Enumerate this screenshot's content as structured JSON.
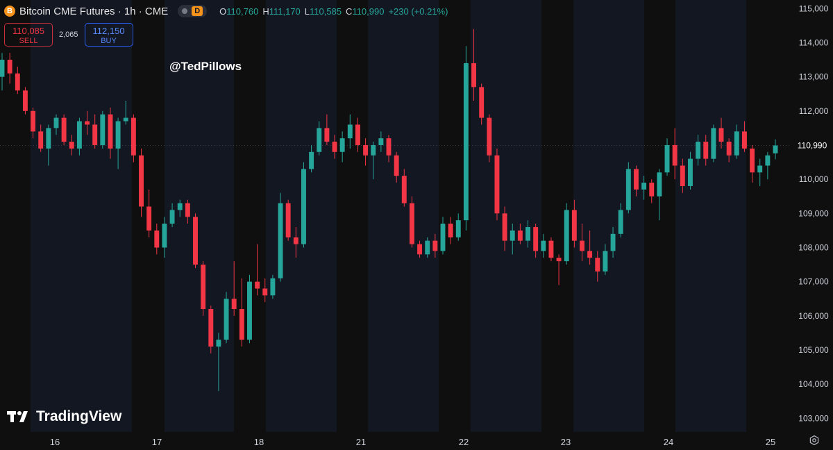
{
  "header": {
    "coin_glyph": "B",
    "title": "Bitcoin CME Futures · 1h · CME",
    "toggle_letter": "D",
    "ohlc": {
      "o_key": "O",
      "o_val": "110,760",
      "h_key": "H",
      "h_val": "111,170",
      "l_key": "L",
      "l_val": "110,585",
      "c_key": "C",
      "c_val": "110,990",
      "change": "+230 (+0.21%)"
    }
  },
  "trade": {
    "sell_price": "110,085",
    "sell_label": "SELL",
    "spread": "2,065",
    "buy_price": "112,150",
    "buy_label": "BUY"
  },
  "watermark": "@TedPillows",
  "brand": "TradingView",
  "colors": {
    "up": "#26a69a",
    "down": "#f23645",
    "background": "#0f0f0f",
    "session_band": "#131722"
  },
  "chart_data": {
    "type": "candlestick",
    "ylim": [
      102600,
      115250
    ],
    "y_ticks": [
      "103,000",
      "104,000",
      "105,000",
      "106,000",
      "107,000",
      "108,000",
      "109,000",
      "110,000",
      "111,000",
      "112,000",
      "113,000",
      "114,000",
      "115,000"
    ],
    "y_tick_values": [
      103000,
      104000,
      105000,
      106000,
      107000,
      108000,
      109000,
      110000,
      111000,
      112000,
      113000,
      114000,
      115000
    ],
    "x_ticks": [
      "16",
      "17",
      "18",
      "21",
      "22",
      "23",
      "24",
      "25"
    ],
    "last_price_label": "110,990",
    "last_price": 110990,
    "candles": [
      [
        113000,
        113700,
        112600,
        113500
      ],
      [
        113500,
        113700,
        112800,
        113100
      ],
      [
        113100,
        113300,
        112500,
        112600
      ],
      [
        112600,
        112700,
        111900,
        112000
      ],
      [
        112000,
        112100,
        111200,
        111400
      ],
      [
        111400,
        111600,
        110800,
        110900
      ],
      [
        110900,
        111600,
        110400,
        111500
      ],
      [
        111500,
        111900,
        111300,
        111800
      ],
      [
        111800,
        111900,
        111000,
        111100
      ],
      [
        111100,
        111300,
        110700,
        110900
      ],
      [
        110900,
        111800,
        110700,
        111700
      ],
      [
        111700,
        112000,
        111300,
        111600
      ],
      [
        111600,
        111900,
        110900,
        111000
      ],
      [
        111000,
        112000,
        110900,
        111900
      ],
      [
        111900,
        112100,
        110600,
        110900
      ],
      [
        110900,
        111800,
        110300,
        111700
      ],
      [
        111700,
        112300,
        111600,
        111800
      ],
      [
        111800,
        111900,
        110500,
        110700
      ],
      [
        110700,
        110900,
        108900,
        109200
      ],
      [
        109200,
        109700,
        108300,
        108500
      ],
      [
        108500,
        108700,
        107800,
        108000
      ],
      [
        108000,
        108900,
        107700,
        108700
      ],
      [
        108700,
        109300,
        108600,
        109100
      ],
      [
        109100,
        109400,
        108900,
        109300
      ],
      [
        109300,
        109400,
        108700,
        108900
      ],
      [
        108900,
        109000,
        107400,
        107500
      ],
      [
        107500,
        107600,
        106000,
        106200
      ],
      [
        106200,
        106300,
        104900,
        105100
      ],
      [
        105100,
        105500,
        103800,
        105300
      ],
      [
        105300,
        106700,
        105200,
        106500
      ],
      [
        106500,
        107600,
        106000,
        106200
      ],
      [
        106200,
        107100,
        105100,
        105300
      ],
      [
        105300,
        107200,
        105200,
        107000
      ],
      [
        107000,
        108100,
        106600,
        106800
      ],
      [
        106800,
        107100,
        106400,
        106600
      ],
      [
        106600,
        107200,
        106500,
        107100
      ],
      [
        107100,
        109600,
        107000,
        109300
      ],
      [
        109300,
        109400,
        108200,
        108300
      ],
      [
        108300,
        108600,
        107700,
        108100
      ],
      [
        108100,
        110500,
        108000,
        110300
      ],
      [
        110300,
        111000,
        110200,
        110800
      ],
      [
        110800,
        111700,
        110700,
        111500
      ],
      [
        111500,
        111900,
        111000,
        111100
      ],
      [
        111100,
        111300,
        110600,
        110800
      ],
      [
        110800,
        111400,
        110500,
        111200
      ],
      [
        111200,
        111900,
        110900,
        111600
      ],
      [
        111600,
        111800,
        110800,
        111000
      ],
      [
        111000,
        111200,
        110400,
        110700
      ],
      [
        110700,
        111100,
        110000,
        111000
      ],
      [
        111000,
        111400,
        110800,
        111200
      ],
      [
        111200,
        111300,
        110500,
        110700
      ],
      [
        110700,
        110800,
        109900,
        110100
      ],
      [
        110100,
        110300,
        109200,
        109300
      ],
      [
        109300,
        109500,
        108000,
        108100
      ],
      [
        108100,
        108200,
        107700,
        107800
      ],
      [
        107800,
        108300,
        107700,
        108200
      ],
      [
        108200,
        108400,
        107700,
        107900
      ],
      [
        107900,
        108900,
        107800,
        108700
      ],
      [
        108700,
        108900,
        108100,
        108300
      ],
      [
        108300,
        109000,
        108200,
        108800
      ],
      [
        108800,
        113900,
        108500,
        113400
      ],
      [
        113400,
        114400,
        112300,
        112700
      ],
      [
        112700,
        112800,
        111600,
        111800
      ],
      [
        111800,
        111900,
        110500,
        110700
      ],
      [
        110700,
        110900,
        108800,
        109000
      ],
      [
        109000,
        109200,
        107900,
        108200
      ],
      [
        108200,
        108700,
        107800,
        108500
      ],
      [
        108500,
        108700,
        108100,
        108200
      ],
      [
        108200,
        108800,
        108000,
        108600
      ],
      [
        108600,
        108700,
        107700,
        107900
      ],
      [
        107900,
        108400,
        107700,
        108200
      ],
      [
        108200,
        108300,
        107600,
        107700
      ],
      [
        107700,
        107800,
        106900,
        107600
      ],
      [
        107600,
        109300,
        107500,
        109100
      ],
      [
        109100,
        109400,
        108000,
        108200
      ],
      [
        108200,
        108700,
        107600,
        107900
      ],
      [
        107900,
        108500,
        107500,
        107700
      ],
      [
        107700,
        107900,
        107000,
        107300
      ],
      [
        107300,
        108100,
        107200,
        107900
      ],
      [
        107900,
        108600,
        107700,
        108400
      ],
      [
        108400,
        109300,
        108300,
        109100
      ],
      [
        109100,
        110500,
        109000,
        110300
      ],
      [
        110300,
        110400,
        109500,
        109700
      ],
      [
        109700,
        110100,
        109400,
        109900
      ],
      [
        109900,
        110000,
        109300,
        109500
      ],
      [
        109500,
        110300,
        108800,
        110200
      ],
      [
        110200,
        111200,
        110100,
        111000
      ],
      [
        111000,
        111500,
        110000,
        110400
      ],
      [
        110400,
        110600,
        109600,
        109800
      ],
      [
        109800,
        110800,
        109700,
        110600
      ],
      [
        110600,
        111300,
        110400,
        111100
      ],
      [
        111100,
        111300,
        110400,
        110600
      ],
      [
        110600,
        111600,
        110500,
        111500
      ],
      [
        111500,
        111800,
        110900,
        111100
      ],
      [
        111100,
        111200,
        110500,
        110700
      ],
      [
        110700,
        111600,
        110600,
        111400
      ],
      [
        111400,
        111700,
        110800,
        110900
      ],
      [
        110900,
        111000,
        109900,
        110200
      ],
      [
        110200,
        110600,
        109800,
        110400
      ],
      [
        110400,
        110800,
        110000,
        110700
      ],
      [
        110760,
        111170,
        110585,
        110990
      ]
    ]
  }
}
